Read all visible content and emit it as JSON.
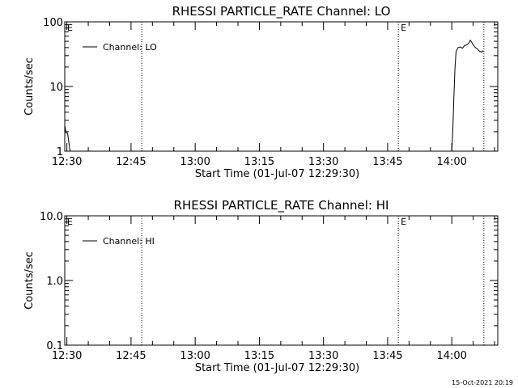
{
  "footer_timestamp": "15-Oct-2021 20:19",
  "chart_data": [
    {
      "type": "line",
      "title": "RHESSI PARTICLE_RATE Channel: LO",
      "xlabel": "Start Time (01-Jul-07 12:29:30)",
      "ylabel": "Counts/sec",
      "yscale": "log",
      "xlim": [
        "12:29:30",
        "14:10:45"
      ],
      "ylim": [
        1,
        100
      ],
      "x_tick_labels": [
        "12:30",
        "12:45",
        "13:00",
        "13:15",
        "13:30",
        "13:45",
        "14:00"
      ],
      "y_tick_labels": [
        "1",
        "10",
        "100"
      ],
      "legend": {
        "label": "Channel: LO",
        "position": "top-left"
      },
      "vlines": [
        {
          "time": "12:29:30",
          "label": "E"
        },
        {
          "time": "12:47:30",
          "label": ""
        },
        {
          "time": "13:47:30",
          "label": "E"
        },
        {
          "time": "14:07:30",
          "label": ""
        }
      ],
      "series": [
        {
          "name": "Channel: LO",
          "points": [
            [
              "12:29:30",
              2.5
            ],
            [
              "12:29:50",
              1.9
            ],
            [
              "12:30:10",
              1.9
            ],
            [
              "12:30:30",
              1.3
            ],
            [
              "12:30:45",
              1.0
            ],
            [
              "14:00:00",
              1.0
            ],
            [
              "14:00:15",
              2.2
            ],
            [
              "14:00:30",
              7.0
            ],
            [
              "14:00:45",
              20.0
            ],
            [
              "14:01:00",
              35.0
            ],
            [
              "14:01:30",
              40.0
            ],
            [
              "14:02:00",
              41.0
            ],
            [
              "14:02:30",
              39.0
            ],
            [
              "14:03:00",
              43.0
            ],
            [
              "14:03:30",
              44.0
            ],
            [
              "14:04:00",
              47.0
            ],
            [
              "14:04:20",
              52.0
            ],
            [
              "14:04:40",
              48.0
            ],
            [
              "14:05:00",
              44.0
            ],
            [
              "14:05:30",
              40.0
            ],
            [
              "14:06:00",
              38.0
            ],
            [
              "14:06:30",
              35.0
            ],
            [
              "14:07:00",
              34.0
            ],
            [
              "14:07:20",
              36.0
            ]
          ]
        }
      ]
    },
    {
      "type": "line",
      "title": "RHESSI PARTICLE_RATE Channel: HI",
      "xlabel": "Start Time (01-Jul-07 12:29:30)",
      "ylabel": "Counts/sec",
      "yscale": "log",
      "xlim": [
        "12:29:30",
        "14:10:45"
      ],
      "ylim": [
        0.1,
        10
      ],
      "x_tick_labels": [
        "12:30",
        "12:45",
        "13:00",
        "13:15",
        "13:30",
        "13:45",
        "14:00"
      ],
      "y_tick_labels": [
        "0.1",
        "1.0",
        "10.0"
      ],
      "legend": {
        "label": "Channel: HI",
        "position": "top-left"
      },
      "vlines": [
        {
          "time": "12:29:30",
          "label": "E"
        },
        {
          "time": "12:47:30",
          "label": ""
        },
        {
          "time": "13:47:30",
          "label": "E"
        },
        {
          "time": "14:07:30",
          "label": ""
        }
      ],
      "series": [
        {
          "name": "Channel: HI",
          "points": []
        }
      ]
    }
  ]
}
